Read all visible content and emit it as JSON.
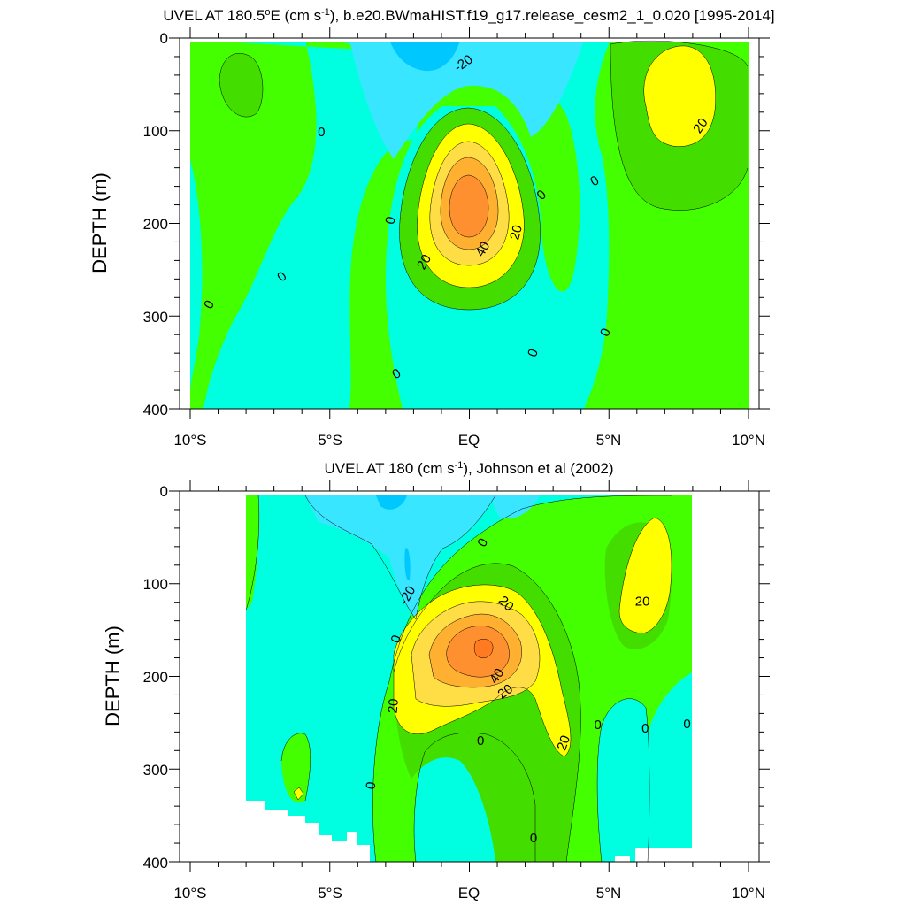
{
  "colors": {
    "lt_m30": "#00c8ff",
    "m30_m20": "#38e6ff",
    "m20_0": "#00ffe0",
    "0_10": "#44ff00",
    "10_20": "#44dd00",
    "20_30": "#ffff00",
    "30_40": "#ffdd44",
    "40_50": "#ffb030",
    "gt_50": "#ff9030",
    "missing": "#ffffff"
  },
  "chart_data": [
    {
      "type": "contour",
      "title": "UVEL AT 180.5°E (cm s-1), b.e20.BWmaHIST.f19_g17.release_cesm2_1_0.020 [1995-2014]",
      "title_parts": {
        "a": "UVEL AT 180.5",
        "deg": "o",
        "b": "E (cm s",
        "sup": "-1",
        "c": "), b.e20.BWmaHIST.f19_g17.release_cesm2_1_0.020 [1995-2014]"
      },
      "xlabel": "",
      "ylabel": "DEPTH (m)",
      "x_ticks": [
        "10°S",
        "5°S",
        "EQ",
        "5°N",
        "10°N"
      ],
      "y_ticks": [
        "0",
        "100",
        "200",
        "300",
        "400"
      ],
      "xlim": [
        -10,
        10
      ],
      "ylim": [
        0,
        400
      ],
      "y_reversed": true,
      "levels_labeled": [
        "-20",
        "0",
        "20",
        "40"
      ],
      "contour_labels": [
        {
          "text": "-20",
          "lat": -0.2,
          "depth": 28,
          "angle": -35
        },
        {
          "text": "0",
          "lat": -5.3,
          "depth": 102,
          "angle": 0
        },
        {
          "text": "0",
          "lat": -2.8,
          "depth": 197,
          "angle": -75
        },
        {
          "text": "0",
          "lat": -6.7,
          "depth": 258,
          "angle": -40
        },
        {
          "text": "0",
          "lat": -9.3,
          "depth": 288,
          "angle": -60
        },
        {
          "text": "0",
          "lat": -2.6,
          "depth": 363,
          "angle": -30
        },
        {
          "text": "0",
          "lat": 2.6,
          "depth": 170,
          "angle": -40
        },
        {
          "text": "0",
          "lat": 4.5,
          "depth": 155,
          "angle": -30
        },
        {
          "text": "0",
          "lat": 4.9,
          "depth": 318,
          "angle": -65
        },
        {
          "text": "0",
          "lat": 2.3,
          "depth": 340,
          "angle": -70
        },
        {
          "text": "20",
          "lat": -1.6,
          "depth": 242,
          "angle": -60
        },
        {
          "text": "20",
          "lat": 1.7,
          "depth": 210,
          "angle": -75
        },
        {
          "text": "40",
          "lat": 0.5,
          "depth": 228,
          "angle": -60
        },
        {
          "text": "20",
          "lat": 8.3,
          "depth": 95,
          "angle": -55
        }
      ]
    },
    {
      "type": "contour",
      "title": "UVEL AT 180 (cm s-1), Johnson et al (2002)",
      "title_parts": {
        "a": "UVEL AT 180 (cm s",
        "sup": "-1",
        "c": "), Johnson et al (2002)"
      },
      "xlabel": "",
      "ylabel": "DEPTH (m)",
      "x_ticks": [
        "10°S",
        "5°S",
        "EQ",
        "5°N",
        "10°N"
      ],
      "y_ticks": [
        "0",
        "100",
        "200",
        "300",
        "400"
      ],
      "xlim": [
        -10,
        10
      ],
      "ylim": [
        0,
        400
      ],
      "y_reversed": true,
      "data_extent_lat": [
        -8,
        8
      ],
      "levels_labeled": [
        "-20",
        "0",
        "20",
        "40"
      ],
      "contour_labels": [
        {
          "text": "-20",
          "lat": -2.2,
          "depth": 113,
          "angle": -60
        },
        {
          "text": "0",
          "lat": 0.5,
          "depth": 56,
          "angle": -60
        },
        {
          "text": "0",
          "lat": -2.6,
          "depth": 160,
          "angle": -70
        },
        {
          "text": "0",
          "lat": -3.5,
          "depth": 318,
          "angle": -80
        },
        {
          "text": "0",
          "lat": 0.4,
          "depth": 270,
          "angle": 0
        },
        {
          "text": "0",
          "lat": 2.3,
          "depth": 375,
          "angle": 0
        },
        {
          "text": "0",
          "lat": 4.6,
          "depth": 253,
          "angle": 0
        },
        {
          "text": "0",
          "lat": 6.3,
          "depth": 257,
          "angle": 0
        },
        {
          "text": "0",
          "lat": 7.8,
          "depth": 252,
          "angle": 0
        },
        {
          "text": "20",
          "lat": 1.3,
          "depth": 122,
          "angle": 45
        },
        {
          "text": "20",
          "lat": -2.7,
          "depth": 232,
          "angle": -85
        },
        {
          "text": "40",
          "lat": 1.0,
          "depth": 200,
          "angle": -55
        },
        {
          "text": "20",
          "lat": 1.3,
          "depth": 217,
          "angle": -35
        },
        {
          "text": "20",
          "lat": 3.4,
          "depth": 272,
          "angle": -70
        },
        {
          "text": "20",
          "lat": 6.2,
          "depth": 120,
          "angle": 0
        }
      ]
    }
  ]
}
